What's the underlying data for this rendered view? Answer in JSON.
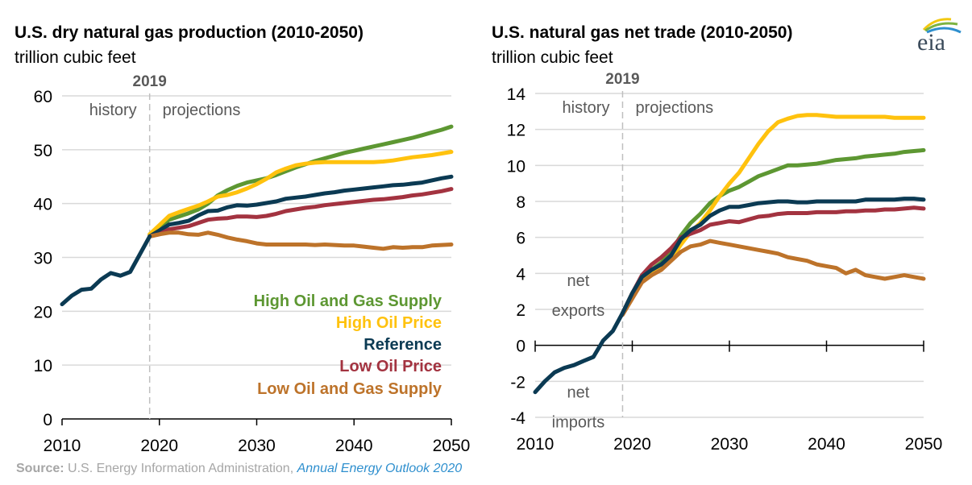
{
  "logo": {
    "text": "eia"
  },
  "source": {
    "label": "Source:",
    "text": " U.S. Energy Information Administration, ",
    "link": "Annual Energy Outlook 2020",
    "link_color": "#2e8fce"
  },
  "chart_data": [
    {
      "type": "line",
      "title": "U.S. dry natural gas production (2010-2050)",
      "subtitle": "trillion cubic feet",
      "xlabel": "",
      "ylabel": "trillion cubic feet",
      "xlim": [
        2010,
        2050
      ],
      "ylim": [
        0,
        60
      ],
      "xticks": [
        "2010",
        "2020",
        "2030",
        "2040",
        "2050"
      ],
      "yticks": [
        "0",
        "10",
        "20",
        "30",
        "40",
        "50",
        "60"
      ],
      "divider_year": "2019",
      "annotations": {
        "history": "history",
        "projections": "projections"
      },
      "legend_placement": "bottom-right",
      "history": {
        "name": "history",
        "color": "#0b3a53",
        "x_start": 2010,
        "values": [
          21.3,
          22.9,
          24.0,
          24.2,
          25.9,
          27.1,
          26.6,
          27.3,
          30.6,
          33.9
        ]
      },
      "series": [
        {
          "name": "High Oil and Gas Supply",
          "color": "#5d9732",
          "x_start": 2019,
          "values": [
            34.3,
            35.5,
            37.0,
            37.6,
            38.2,
            38.9,
            40.0,
            41.5,
            42.5,
            43.3,
            43.9,
            44.3,
            44.7,
            45.3,
            46.0,
            46.7,
            47.3,
            47.9,
            48.4,
            48.9,
            49.4,
            49.8,
            50.2,
            50.6,
            51.0,
            51.4,
            51.8,
            52.2,
            52.7,
            53.2,
            53.7,
            54.3
          ]
        },
        {
          "name": "High Oil Price",
          "color": "#ffc20e",
          "x_start": 2019,
          "values": [
            34.3,
            36.0,
            37.7,
            38.4,
            39.0,
            39.6,
            40.4,
            41.3,
            41.6,
            42.1,
            42.8,
            43.6,
            44.6,
            45.8,
            46.5,
            47.1,
            47.4,
            47.6,
            47.7,
            47.7,
            47.7,
            47.7,
            47.7,
            47.7,
            47.8,
            48.0,
            48.3,
            48.6,
            48.8,
            49.0,
            49.3,
            49.6
          ]
        },
        {
          "name": "Reference",
          "color": "#0b3a53",
          "x_start": 2019,
          "values": [
            33.9,
            35.0,
            36.1,
            36.4,
            36.8,
            37.8,
            38.6,
            38.7,
            39.3,
            39.7,
            39.6,
            39.8,
            40.1,
            40.4,
            40.9,
            41.1,
            41.3,
            41.6,
            41.9,
            42.1,
            42.4,
            42.6,
            42.8,
            43.0,
            43.2,
            43.4,
            43.5,
            43.7,
            43.9,
            44.3,
            44.7,
            45.0
          ]
        },
        {
          "name": "Low Oil Price",
          "color": "#a33340",
          "x_start": 2019,
          "values": [
            33.9,
            34.3,
            35.2,
            35.5,
            35.8,
            36.4,
            37.0,
            37.2,
            37.3,
            37.6,
            37.6,
            37.5,
            37.7,
            38.1,
            38.6,
            38.9,
            39.2,
            39.4,
            39.7,
            39.9,
            40.1,
            40.3,
            40.5,
            40.7,
            40.8,
            41.0,
            41.2,
            41.5,
            41.7,
            42.0,
            42.3,
            42.7
          ]
        },
        {
          "name": "Low Oil and Gas Supply",
          "color": "#bd732a",
          "x_start": 2019,
          "values": [
            33.9,
            34.3,
            34.6,
            34.6,
            34.3,
            34.2,
            34.6,
            34.2,
            33.7,
            33.3,
            33.0,
            32.6,
            32.4,
            32.4,
            32.4,
            32.4,
            32.4,
            32.3,
            32.4,
            32.3,
            32.2,
            32.2,
            32.0,
            31.8,
            31.6,
            31.9,
            31.8,
            31.9,
            31.9,
            32.2,
            32.3,
            32.4
          ]
        }
      ]
    },
    {
      "type": "line",
      "title": "U.S. natural gas net trade (2010-2050)",
      "subtitle": "trillion cubic feet",
      "xlabel": "",
      "ylabel": "trillion cubic feet",
      "xlim": [
        2010,
        2050
      ],
      "ylim": [
        -4,
        14
      ],
      "xticks": [
        "2010",
        "2020",
        "2030",
        "2040",
        "2050"
      ],
      "yticks": [
        "-4",
        "-2",
        "0",
        "2",
        "4",
        "6",
        "8",
        "10",
        "12",
        "14"
      ],
      "divider_year": "2019",
      "annotations": {
        "history": "history",
        "projections": "projections",
        "net_exports": [
          "net",
          "exports"
        ],
        "net_imports": [
          "net",
          "imports"
        ]
      },
      "history": {
        "name": "history",
        "color": "#0b3a53",
        "x_start": 2010,
        "values": [
          -2.6,
          -2.0,
          -1.5,
          -1.25,
          -1.1,
          -0.86,
          -0.64,
          0.27,
          0.8,
          1.8
        ]
      },
      "series": [
        {
          "name": "High Oil and Gas Supply",
          "color": "#5d9732",
          "x_start": 2019,
          "values": [
            1.8,
            2.9,
            3.8,
            4.2,
            4.6,
            5.2,
            6.1,
            6.8,
            7.3,
            7.9,
            8.3,
            8.6,
            8.8,
            9.1,
            9.4,
            9.6,
            9.8,
            10.0,
            10.0,
            10.05,
            10.1,
            10.2,
            10.3,
            10.35,
            10.4,
            10.5,
            10.55,
            10.6,
            10.65,
            10.75,
            10.8,
            10.85
          ]
        },
        {
          "name": "High Oil Price",
          "color": "#ffc20e",
          "x_start": 2019,
          "values": [
            1.8,
            2.8,
            3.7,
            4.0,
            4.3,
            4.8,
            5.6,
            6.3,
            6.8,
            7.5,
            8.3,
            9.0,
            9.6,
            10.4,
            11.2,
            11.9,
            12.4,
            12.6,
            12.75,
            12.8,
            12.8,
            12.75,
            12.7,
            12.7,
            12.7,
            12.7,
            12.7,
            12.7,
            12.65,
            12.65,
            12.65,
            12.65
          ]
        },
        {
          "name": "Low Oil Price",
          "color": "#a33340",
          "x_start": 2019,
          "values": [
            1.8,
            2.9,
            3.9,
            4.5,
            4.9,
            5.4,
            6.0,
            6.2,
            6.4,
            6.7,
            6.8,
            6.9,
            6.85,
            7.0,
            7.15,
            7.2,
            7.3,
            7.35,
            7.35,
            7.35,
            7.4,
            7.4,
            7.4,
            7.45,
            7.45,
            7.5,
            7.5,
            7.55,
            7.55,
            7.6,
            7.65,
            7.6
          ]
        },
        {
          "name": "Low Oil and Gas Supply",
          "color": "#bd732a",
          "x_start": 2019,
          "values": [
            1.7,
            2.6,
            3.5,
            3.9,
            4.2,
            4.7,
            5.2,
            5.5,
            5.6,
            5.8,
            5.7,
            5.6,
            5.5,
            5.4,
            5.3,
            5.2,
            5.1,
            4.9,
            4.8,
            4.7,
            4.5,
            4.4,
            4.3,
            4.0,
            4.2,
            3.9,
            3.8,
            3.7,
            3.8,
            3.9,
            3.8,
            3.7
          ]
        },
        {
          "name": "Reference",
          "color": "#0b3a53",
          "x_start": 2019,
          "values": [
            1.8,
            2.9,
            3.8,
            4.2,
            4.5,
            5.0,
            5.9,
            6.4,
            6.7,
            7.2,
            7.5,
            7.7,
            7.7,
            7.8,
            7.9,
            7.95,
            8.0,
            8.0,
            7.95,
            7.95,
            8.0,
            8.0,
            8.0,
            8.0,
            8.0,
            8.1,
            8.1,
            8.1,
            8.1,
            8.15,
            8.15,
            8.1
          ]
        }
      ]
    }
  ]
}
